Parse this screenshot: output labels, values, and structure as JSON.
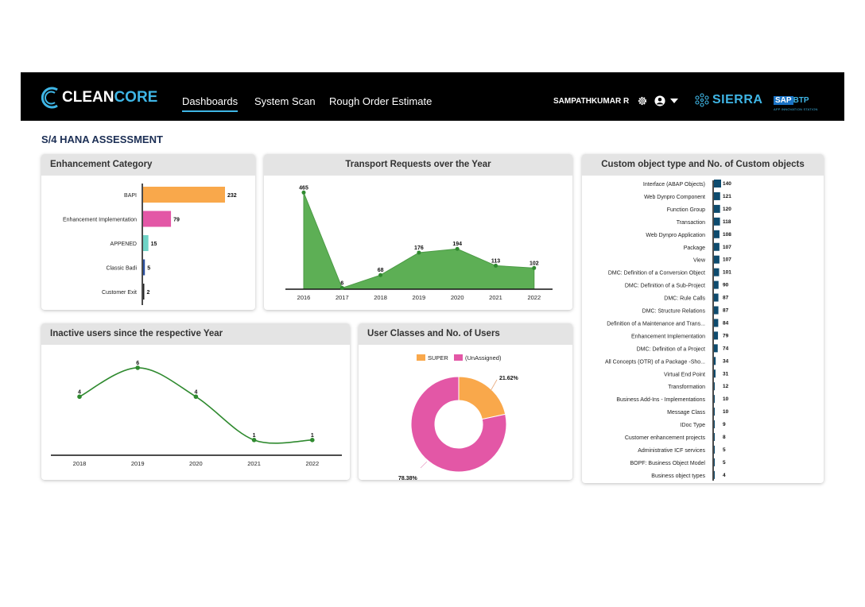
{
  "header": {
    "logo": {
      "part1": "CLEAN",
      "part2": "CORE"
    },
    "nav": [
      {
        "label": "Dashboards",
        "active": true
      },
      {
        "label": "System Scan",
        "active": false
      },
      {
        "label": "Rough Order Estimate",
        "active": false
      }
    ],
    "user_name": "SAMPATHKUMAR R",
    "partner_logo": "SIERRA",
    "sap_logo": {
      "sap": "SAP",
      "btp": "BTP",
      "subtitle": "APP INNOVATION STATION"
    },
    "icons": [
      "gear-icon",
      "user-circle-icon",
      "chevron-down-icon",
      "sierra-logo-icon"
    ]
  },
  "page_title": "S/4 HANA ASSESSMENT",
  "colors": {
    "accent": "#3fb6e6",
    "green": "#5daf55",
    "orange": "#f9a84b",
    "pink": "#e357a6",
    "teal": "#6fd3c6",
    "navy": "#0e4b6e"
  },
  "cards": {
    "enhancement": {
      "title": "Enhancement Category"
    },
    "transport": {
      "title": "Transport Requests over the Year"
    },
    "custom": {
      "title": "Custom object type and No. of Custom objects"
    },
    "inactive": {
      "title": "Inactive users since the respective Year"
    },
    "classes": {
      "title": "User Classes and No. of Users"
    }
  },
  "chart_data": [
    {
      "id": "enhancement",
      "type": "bar",
      "orientation": "horizontal",
      "categories": [
        "BAPI",
        "Enhancement Implementation",
        "APPENED",
        "Classic Badi",
        "Customer Exit"
      ],
      "values": [
        232,
        79,
        15,
        5,
        2
      ],
      "colors": [
        "#f9a84b",
        "#e357a6",
        "#6fd3c6",
        "#2a4fa0",
        "#222222"
      ],
      "title": "Enhancement Category"
    },
    {
      "id": "transport",
      "type": "area",
      "x": [
        "2016",
        "2017",
        "2018",
        "2019",
        "2020",
        "2021",
        "2022"
      ],
      "values": [
        465,
        6,
        68,
        176,
        194,
        113,
        102
      ],
      "title": "Transport Requests over the Year",
      "ylim": [
        0,
        470
      ]
    },
    {
      "id": "custom",
      "type": "bar",
      "orientation": "horizontal",
      "categories": [
        "Interface (ABAP Objects)",
        "Web Dynpro Component",
        "Function Group",
        "Transaction",
        "Web Dynpro Application",
        "Package",
        "View",
        "DMC: Definition of a Conversion Object",
        "DMC: Definition of a Sub-Project",
        "DMC: Rule Calls",
        "DMC: Structure Relations",
        "Definition of a Maintenance and Trans...",
        "Enhancement Implementation",
        "DMC: Definition of a Project",
        "All Concepts (OTR) of a Package -Sho...",
        "Virtual End Point",
        "Transformation",
        "Business Add-Ins - Implementations",
        "Message Class",
        "IDoc Type",
        "Customer enhancement projects",
        "Administrative ICF services",
        "BOPF: Business Object Model",
        "Business object types"
      ],
      "values": [
        140,
        121,
        120,
        118,
        108,
        107,
        107,
        101,
        90,
        87,
        87,
        84,
        79,
        74,
        34,
        31,
        12,
        10,
        10,
        9,
        8,
        5,
        5,
        4
      ],
      "title": "Custom object type and No. of Custom objects"
    },
    {
      "id": "inactive",
      "type": "line",
      "x": [
        "2018",
        "2019",
        "2020",
        "2021",
        "2022"
      ],
      "values": [
        4,
        6,
        4,
        1,
        1
      ],
      "title": "Inactive users since the respective Year",
      "ylim": [
        0,
        6.6
      ]
    },
    {
      "id": "classes",
      "type": "pie",
      "variant": "donut",
      "labels": [
        "SUPER",
        "(UnAssigned)"
      ],
      "values": [
        21.62,
        78.38
      ],
      "display": [
        "21.62%",
        "78.38%"
      ],
      "colors": [
        "#f9a84b",
        "#e357a6"
      ],
      "legend": "top",
      "title": "User Classes and No. of Users"
    }
  ]
}
